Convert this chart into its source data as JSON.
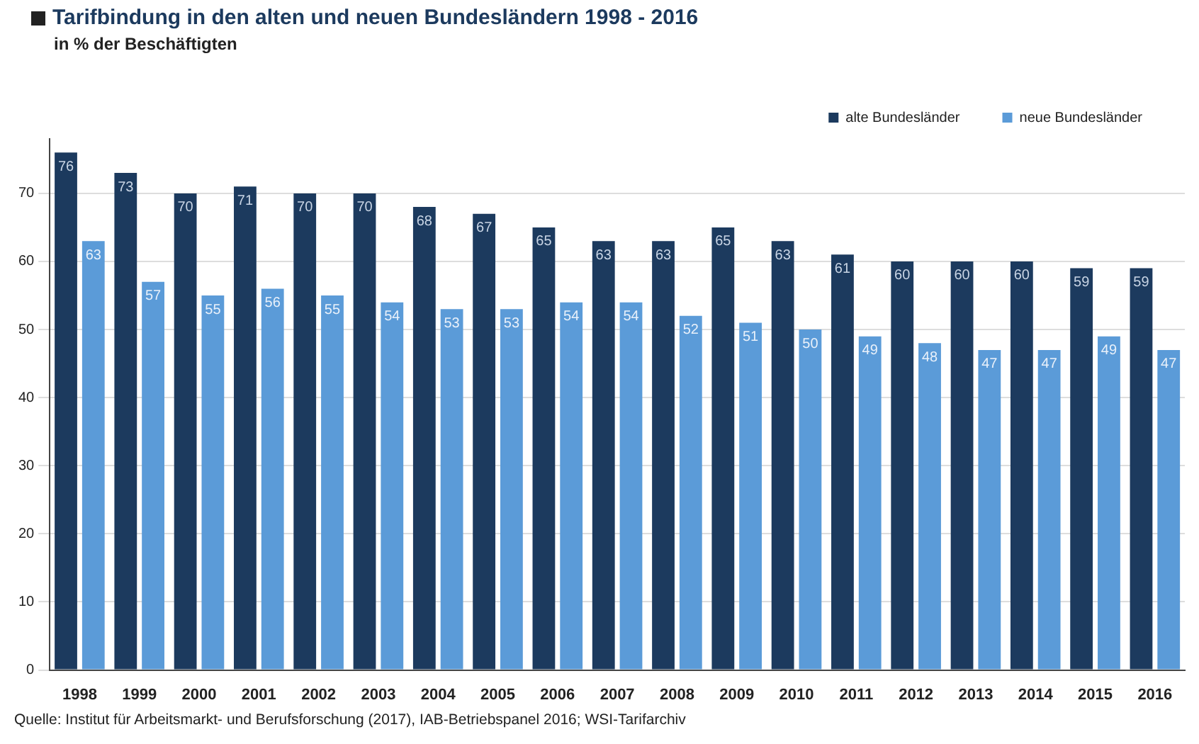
{
  "chart_data": {
    "type": "bar",
    "title": "Tarifbindung in den alten und neuen Bundesländern  1998 - 2016",
    "subtitle": "in % der Beschäftigten",
    "categories": [
      "1998",
      "1999",
      "2000",
      "2001",
      "2002",
      "2003",
      "2004",
      "2005",
      "2006",
      "2007",
      "2008",
      "2009",
      "2010",
      "2011",
      "2012",
      "2013",
      "2014",
      "2015",
      "2016"
    ],
    "series": [
      {
        "name": "alte Bundesländer",
        "color": "#1c3a5e",
        "values": [
          76,
          73,
          70,
          71,
          70,
          70,
          68,
          67,
          65,
          63,
          63,
          65,
          63,
          61,
          60,
          60,
          60,
          59,
          59
        ]
      },
      {
        "name": "neue Bundesländer",
        "color": "#5b9bd8",
        "values": [
          63,
          57,
          55,
          56,
          55,
          54,
          53,
          53,
          54,
          54,
          52,
          51,
          50,
          49,
          48,
          47,
          47,
          49,
          47
        ]
      }
    ],
    "ylim": [
      0,
      78
    ],
    "yticks": [
      0,
      10,
      20,
      30,
      40,
      50,
      60,
      70
    ],
    "grid": "y",
    "legend": "top right",
    "data_labels": true,
    "annotations": [
      "Quelle: Institut für Arbeitsmarkt- und Berufsforschung (2017), IAB-Betriebspanel 2016; WSI-Tarifarchiv"
    ]
  }
}
